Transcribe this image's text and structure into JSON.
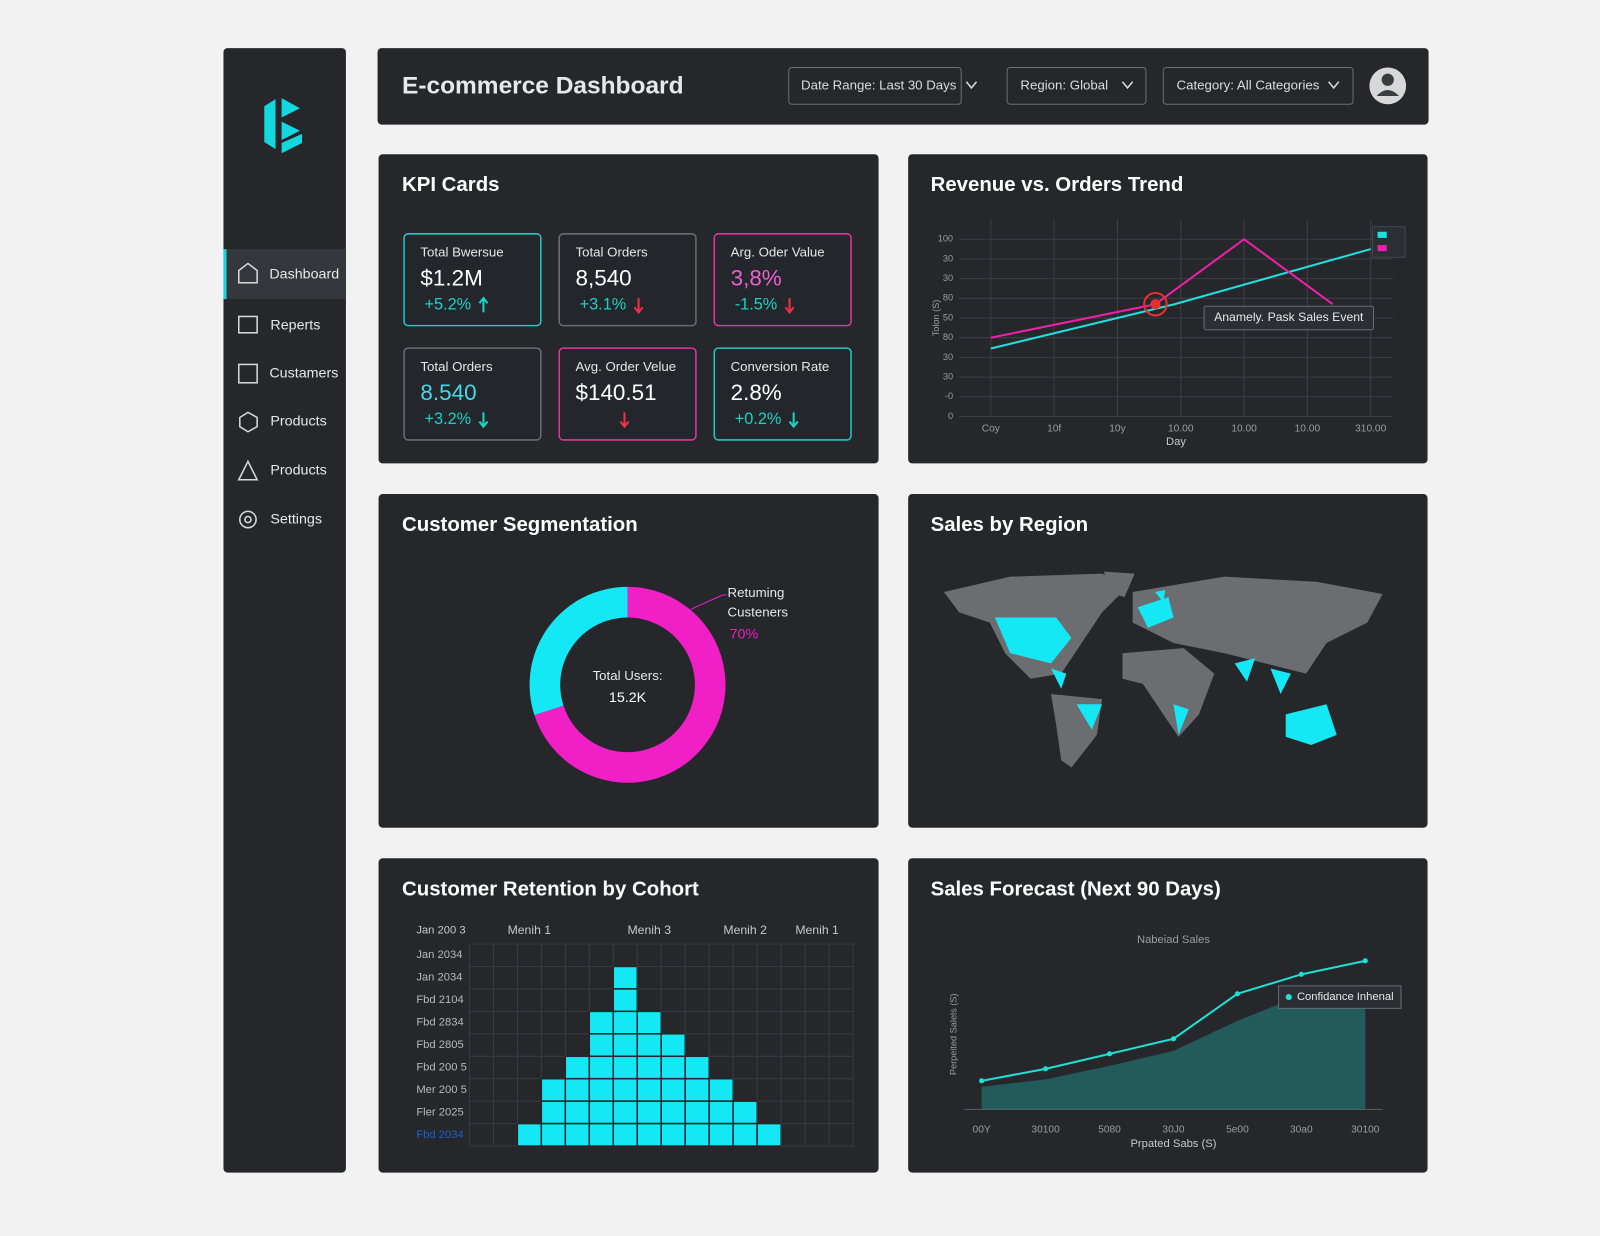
{
  "header": {
    "title": "E-commerce Dashboard",
    "filters": [
      "Date Range: Last 30 Days",
      "Region: Global",
      "Category: All Categories"
    ]
  },
  "sidebar": {
    "items": [
      "Dashboard",
      "Reperts",
      "Custamers",
      "Products",
      "Products",
      "Settings"
    ]
  },
  "kpi": {
    "title": "KPI Cards",
    "cards": [
      {
        "label": "Total Bwersue",
        "value": "$1.2M",
        "change": "+5.2%",
        "trend": "up",
        "color": "#1fc8c0",
        "value_color": "#ffffff",
        "change_color": "#19d3c5",
        "arrow_color": "#19d3c5"
      },
      {
        "label": "Total Orders",
        "value": "8,540",
        "change": "+3.1%",
        "trend": "down",
        "color": "#6a6d72",
        "value_color": "#ffffff",
        "change_color": "#19d3c5",
        "arrow_color": "#f0304a"
      },
      {
        "label": "Arg. Oder Value",
        "value": "3,8%",
        "change": "-1.5%",
        "trend": "down",
        "color": "#e0369a",
        "value_color": "#ee5fd0",
        "change_color": "#19d3c5",
        "arrow_color": "#f0304a"
      },
      {
        "label": "Total Orders",
        "value": "8.540",
        "change": "+3.2%",
        "trend": "down",
        "color": "#6a6d72",
        "value_color": "#48d8e8",
        "change_color": "#19d3c5",
        "arrow_color": "#19d3c5"
      },
      {
        "label": "Avg. Order Velue",
        "value": "$140.51",
        "change": null,
        "trend": "down",
        "color": "#e0369a",
        "value_color": "#ffffff",
        "change_color": "#19d3c5",
        "arrow_color": "#f0304a"
      },
      {
        "label": "Conversion Rate",
        "value": "2.8%",
        "change": "+0.2%",
        "trend": "down",
        "color": "#1fc8c0",
        "value_color": "#ffffff",
        "change_color": "#19d3c5",
        "arrow_color": "#19d3c5"
      }
    ]
  },
  "map": {
    "title": "Sales by Region"
  },
  "chart_data": [
    {
      "type": "line",
      "title": "Revenue vs. Orders Trend",
      "xlabel": "Day",
      "ylabel": "Tolon (S)",
      "xlim": [
        -0.5,
        6.35
      ],
      "ylim": [
        0,
        100
      ],
      "xticks": [
        {
          "value": 0,
          "label": "Coy"
        },
        {
          "value": 1,
          "label": "10f"
        },
        {
          "value": 2,
          "label": "10y"
        },
        {
          "value": 3,
          "label": "10.00"
        },
        {
          "value": 4,
          "label": "10.00"
        },
        {
          "value": 5,
          "label": "10.00"
        },
        {
          "value": 6,
          "label": "310.00"
        }
      ],
      "yticks": [
        0,
        {
          "value": 10,
          "label": "-0"
        },
        {
          "value": 20,
          "label": "30"
        },
        {
          "value": 30,
          "label": "30"
        },
        {
          "value": 40,
          "label": "80"
        },
        {
          "value": 50,
          "label": "50"
        },
        {
          "value": 60,
          "label": "80"
        },
        {
          "value": 70,
          "label": "30"
        },
        {
          "value": 80,
          "label": "30"
        },
        {
          "value": 90,
          "label": "100"
        }
      ],
      "grid": true,
      "legend": "upper right",
      "series": [
        {
          "color": "#1fe0e0",
          "x": [
            0,
            2.9,
            6
          ],
          "values": [
            34.5,
            57,
            85
          ]
        },
        {
          "color": "#f01fa8",
          "x": [
            0,
            2.6,
            4,
            5.4
          ],
          "values": [
            40,
            57,
            90,
            57
          ]
        }
      ],
      "annotation": {
        "text": "Anamely. Pask Sales Event",
        "x": 2.6,
        "y": 57
      }
    },
    {
      "type": "donut",
      "title": "Customer Segmentation",
      "categories": [
        "Retuming Custeners",
        null
      ],
      "values": [
        70,
        30
      ],
      "value_labels": [
        "70%",
        null
      ],
      "colors": [
        "#f01fc6",
        "#14e8f5"
      ],
      "center_label": "Total Users:",
      "center_value": "15.2K"
    },
    {
      "type": "heatmap",
      "title": "Customer Retention by Cohort",
      "corner_label": "Jan 200 3",
      "x_labels": [
        null,
        null,
        "Menih 1",
        null,
        null,
        null,
        null,
        "Menih 3",
        null,
        null,
        null,
        "Menih 2",
        null,
        null,
        "Menih 1",
        null
      ],
      "y_labels": [
        "Jan 2034",
        "Jan 2034",
        "Fbd 2104",
        "Fbd 2834",
        "Fbd 2805",
        "Fbd 200 5",
        "Mer 200 5",
        "Fler 2025",
        "Fbd 2034"
      ],
      "color": "#14e8f5",
      "values": [
        [
          0,
          0,
          0,
          0,
          0,
          0,
          0,
          0,
          0,
          0,
          0,
          0,
          0,
          0,
          0,
          0
        ],
        [
          0,
          0,
          0,
          0,
          0,
          0,
          1,
          0,
          0,
          0,
          0,
          0,
          0,
          0,
          0,
          0
        ],
        [
          0,
          0,
          0,
          0,
          0,
          0,
          1,
          0,
          0,
          0,
          0,
          0,
          0,
          0,
          0,
          0
        ],
        [
          0,
          0,
          0,
          0,
          0,
          1,
          1,
          1,
          0,
          0,
          0,
          0,
          0,
          0,
          0,
          0
        ],
        [
          0,
          0,
          0,
          0,
          0,
          1,
          1,
          1,
          1,
          0,
          0,
          0,
          0,
          0,
          0,
          0
        ],
        [
          0,
          0,
          0,
          0,
          1,
          1,
          1,
          1,
          1,
          1,
          0,
          0,
          0,
          0,
          0,
          0
        ],
        [
          0,
          0,
          0,
          1,
          1,
          1,
          1,
          1,
          1,
          1,
          1,
          0,
          0,
          0,
          0,
          0
        ],
        [
          0,
          0,
          0,
          1,
          1,
          1,
          1,
          1,
          1,
          1,
          1,
          1,
          0,
          0,
          0,
          0
        ],
        [
          0,
          0,
          1,
          1,
          1,
          1,
          1,
          1,
          1,
          1,
          1,
          1,
          1,
          0,
          0,
          0
        ]
      ]
    },
    {
      "type": "line",
      "title": "Sales Forecast (Next 90 Days)",
      "subtitle": "Nabeiad Sales",
      "xlabel": "Prpated Sabs (S)",
      "ylabel": "Perpeited Salels (S)",
      "categories": [
        "00Y",
        "30100",
        "5080",
        "30J0",
        "5e00",
        "30a0",
        "30100"
      ],
      "ylim": [
        0,
        100
      ],
      "legend": "upper right",
      "series": [
        {
          "name": "Confidance Inhenal",
          "color": "#1fe0d4",
          "style": "area",
          "values": [
            15,
            20,
            29,
            39,
            59,
            76,
            83
          ]
        },
        {
          "color": "#1fe0d4",
          "markers": true,
          "values": [
            19,
            27,
            37,
            47,
            77,
            90,
            99
          ]
        }
      ]
    }
  ]
}
